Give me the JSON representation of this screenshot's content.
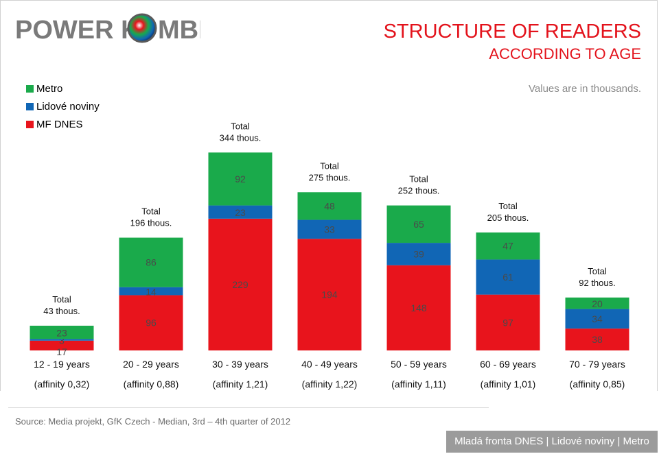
{
  "logo": {
    "left": "POWER K",
    "right": "MBI"
  },
  "title": "STRUCTURE OF READERS",
  "subtitle": "ACCORDING TO AGE",
  "note": "Values are in thousands.",
  "legend": [
    {
      "name": "Metro",
      "color": "#1aaa4b"
    },
    {
      "name": "Lidové noviny",
      "color": "#1166b5"
    },
    {
      "name": "MF DNES",
      "color": "#e8141c"
    }
  ],
  "chart_data": {
    "type": "bar",
    "stacked": true,
    "categories": [
      "12 - 19 years",
      "20 - 29 years",
      "30 - 39 years",
      "40 - 49 years",
      "50 - 59 years",
      "60 - 69 years",
      "70 - 79 years"
    ],
    "affinity": [
      "(affinity 0,32)",
      "(affinity 0,88)",
      "(affinity 1,21)",
      "(affinity 1,22)",
      "(affinity 1,11)",
      "(affinity 1,01)",
      "(affinity 0,85)"
    ],
    "totals": [
      "Total\n43 thous.",
      "Total\n196 thous.",
      "Total\n344 thous.",
      "Total\n275 thous.",
      "Total\n252 thous.",
      "Total\n205 thous.",
      "Total\n92 thous."
    ],
    "series": [
      {
        "name": "MF DNES",
        "color": "#e8141c",
        "values": [
          17,
          96,
          229,
          194,
          148,
          97,
          38
        ]
      },
      {
        "name": "Lidové noviny",
        "color": "#1166b5",
        "values": [
          3,
          14,
          23,
          33,
          39,
          61,
          34
        ]
      },
      {
        "name": "Metro",
        "color": "#1aaa4b",
        "values": [
          23,
          86,
          92,
          48,
          65,
          47,
          20
        ]
      }
    ]
  },
  "source": "Source: Media projekt, GfK Czech - Median, 3rd – 4th quarter of 2012",
  "footer": "Mladá fronta DNES | Lidové noviny | Metro"
}
